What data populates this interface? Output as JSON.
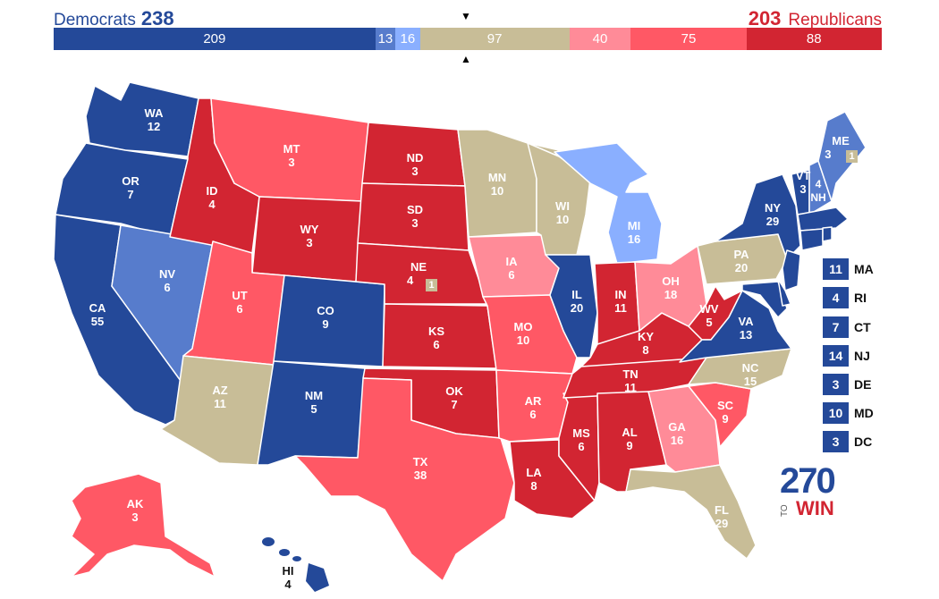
{
  "header": {
    "dem_label": "Democrats",
    "dem_total": "238",
    "rep_total": "203",
    "rep_label": "Republicans"
  },
  "bar": [
    {
      "label": "209",
      "value": 209,
      "color": "#244999"
    },
    {
      "label": "13",
      "value": 13,
      "color": "#577ccc"
    },
    {
      "label": "16",
      "value": 16,
      "color": "#8aafff"
    },
    {
      "label": "97",
      "value": 97,
      "color": "#c8bd97"
    },
    {
      "label": "40",
      "value": 40,
      "color": "#ff8b98"
    },
    {
      "label": "75",
      "value": 75,
      "color": "#ff5865"
    },
    {
      "label": "88",
      "value": 88,
      "color": "#d22532"
    }
  ],
  "colors": {
    "safe_d": "#244999",
    "likely_d": "#577ccc",
    "lean_d": "#8aafff",
    "tossup": "#c8bd97",
    "lean_r": "#ff8b98",
    "likely_r": "#ff5865",
    "safe_r": "#d22532"
  },
  "states": [
    {
      "abbr": "WA",
      "ev": "12"
    },
    {
      "abbr": "OR",
      "ev": "7"
    },
    {
      "abbr": "CA",
      "ev": "55"
    },
    {
      "abbr": "NV",
      "ev": "6"
    },
    {
      "abbr": "ID",
      "ev": "4"
    },
    {
      "abbr": "MT",
      "ev": "3"
    },
    {
      "abbr": "WY",
      "ev": "3"
    },
    {
      "abbr": "UT",
      "ev": "6"
    },
    {
      "abbr": "AZ",
      "ev": "11"
    },
    {
      "abbr": "CO",
      "ev": "9"
    },
    {
      "abbr": "NM",
      "ev": "5"
    },
    {
      "abbr": "ND",
      "ev": "3"
    },
    {
      "abbr": "SD",
      "ev": "3"
    },
    {
      "abbr": "NE",
      "ev": "4"
    },
    {
      "abbr": "KS",
      "ev": "6"
    },
    {
      "abbr": "OK",
      "ev": "7"
    },
    {
      "abbr": "TX",
      "ev": "38"
    },
    {
      "abbr": "MN",
      "ev": "10"
    },
    {
      "abbr": "IA",
      "ev": "6"
    },
    {
      "abbr": "MO",
      "ev": "10"
    },
    {
      "abbr": "AR",
      "ev": "6"
    },
    {
      "abbr": "LA",
      "ev": "8"
    },
    {
      "abbr": "WI",
      "ev": "10"
    },
    {
      "abbr": "IL",
      "ev": "20"
    },
    {
      "abbr": "MS",
      "ev": "6"
    },
    {
      "abbr": "MI",
      "ev": "16"
    },
    {
      "abbr": "IN",
      "ev": "11"
    },
    {
      "abbr": "KY",
      "ev": "8"
    },
    {
      "abbr": "TN",
      "ev": "11"
    },
    {
      "abbr": "AL",
      "ev": "9"
    },
    {
      "abbr": "OH",
      "ev": "18"
    },
    {
      "abbr": "WV",
      "ev": "5"
    },
    {
      "abbr": "GA",
      "ev": "16"
    },
    {
      "abbr": "FL",
      "ev": "29"
    },
    {
      "abbr": "SC",
      "ev": "9"
    },
    {
      "abbr": "NC",
      "ev": "15"
    },
    {
      "abbr": "VA",
      "ev": "13"
    },
    {
      "abbr": "PA",
      "ev": "20"
    },
    {
      "abbr": "NY",
      "ev": "29"
    },
    {
      "abbr": "VT",
      "ev": "3"
    },
    {
      "abbr": "NH",
      "ev": "4"
    },
    {
      "abbr": "ME",
      "ev": "3"
    },
    {
      "abbr": "AK",
      "ev": "3"
    },
    {
      "abbr": "HI",
      "ev": "4"
    }
  ],
  "district_badges": {
    "ne": "1",
    "me": "1"
  },
  "small_states": [
    {
      "abbr": "MA",
      "ev": "11"
    },
    {
      "abbr": "RI",
      "ev": "4"
    },
    {
      "abbr": "CT",
      "ev": "7"
    },
    {
      "abbr": "NJ",
      "ev": "14"
    },
    {
      "abbr": "DE",
      "ev": "3"
    },
    {
      "abbr": "MD",
      "ev": "10"
    },
    {
      "abbr": "DC",
      "ev": "3"
    }
  ],
  "logo": {
    "number": "270",
    "to": "TO",
    "win": "WIN"
  }
}
